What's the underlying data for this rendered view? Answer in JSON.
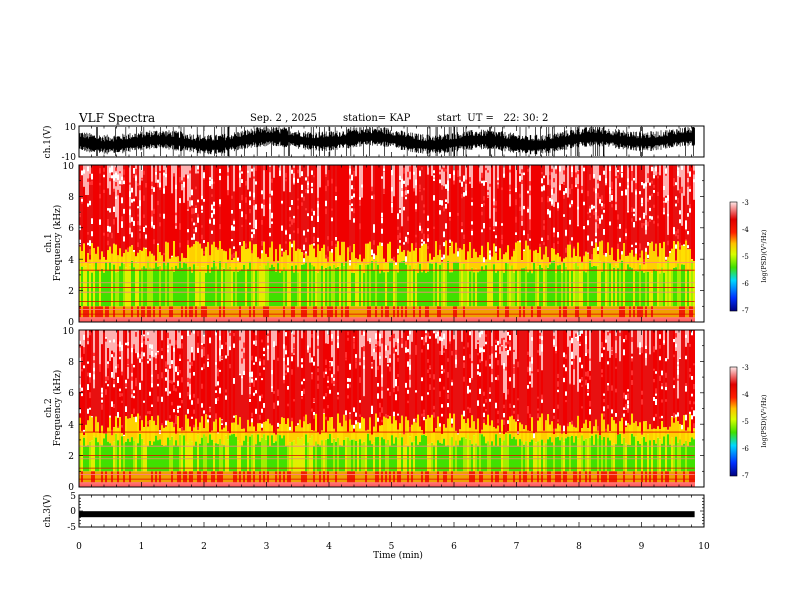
{
  "header": {
    "title": "VLF Spectra",
    "date": "Sep. 2 , 2025",
    "station": "station= KAP",
    "start_ut": "start  UT =   22: 30: 2"
  },
  "chart_data": [
    {
      "type": "line",
      "name": "ch1-waveform",
      "ylabel": "ch.1(V)",
      "ylim": [
        -10,
        10
      ],
      "yticks": [
        "10",
        "-10"
      ],
      "xlim": [
        0,
        10
      ],
      "data_extent_min": 9.85
    },
    {
      "type": "heatmap",
      "name": "ch1-spectrogram",
      "ylabel_channel": "ch.1",
      "ylabel": "Frequency  (kHz)",
      "ylim": [
        0,
        10
      ],
      "yticks": [
        "0",
        "2",
        "4",
        "6",
        "8",
        "10"
      ],
      "xlim": [
        0,
        10
      ],
      "colorbar": {
        "label": "log(PSD)(V²/Hz)",
        "range": [
          -7,
          -3
        ],
        "ticks": [
          "-3",
          "-4",
          "-5",
          "-6",
          "-7"
        ]
      },
      "green_band_khz": [
        1,
        3.5
      ],
      "yellow_edge_khz": 4.5,
      "horizontal_lines_khz": [
        0.2,
        0.5,
        0.8,
        1.3,
        1.9,
        2.2,
        2.5,
        3.3,
        3.8
      ]
    },
    {
      "type": "heatmap",
      "name": "ch2-spectrogram",
      "ylabel_channel": "ch.2",
      "ylabel": "Frequency  (kHz)",
      "ylim": [
        0,
        10
      ],
      "yticks": [
        "0",
        "2",
        "4",
        "6",
        "8",
        "10"
      ],
      "xlim": [
        0,
        10
      ],
      "colorbar": {
        "label": "log(PSD)(V²/Hz)",
        "range": [
          -7,
          -3
        ],
        "ticks": [
          "-3",
          "-4",
          "-5",
          "-6",
          "-7"
        ]
      },
      "green_band_khz": [
        1,
        3
      ],
      "yellow_edge_khz": 4,
      "horizontal_lines_khz": [
        0.2,
        0.5,
        0.8,
        1.2,
        1.8,
        2.0,
        2.6,
        3.5
      ]
    },
    {
      "type": "line",
      "name": "ch3-waveform",
      "ylabel": "ch.3(V)",
      "ylim": [
        -5,
        5
      ],
      "yticks": [
        "5",
        "0",
        "-5"
      ],
      "xlim": [
        0,
        10
      ],
      "level": -1
    }
  ],
  "xaxis": {
    "label": "Time  (min)",
    "ticks": [
      "0",
      "1",
      "2",
      "3",
      "4",
      "5",
      "6",
      "7",
      "8",
      "9",
      "10"
    ]
  },
  "colors": {
    "spectrum": [
      "#00008f",
      "#0050ff",
      "#00e0ff",
      "#38e000",
      "#c8ff00",
      "#ffd000",
      "#ff5000",
      "#e00000",
      "#ff9090",
      "#ffffff"
    ]
  }
}
